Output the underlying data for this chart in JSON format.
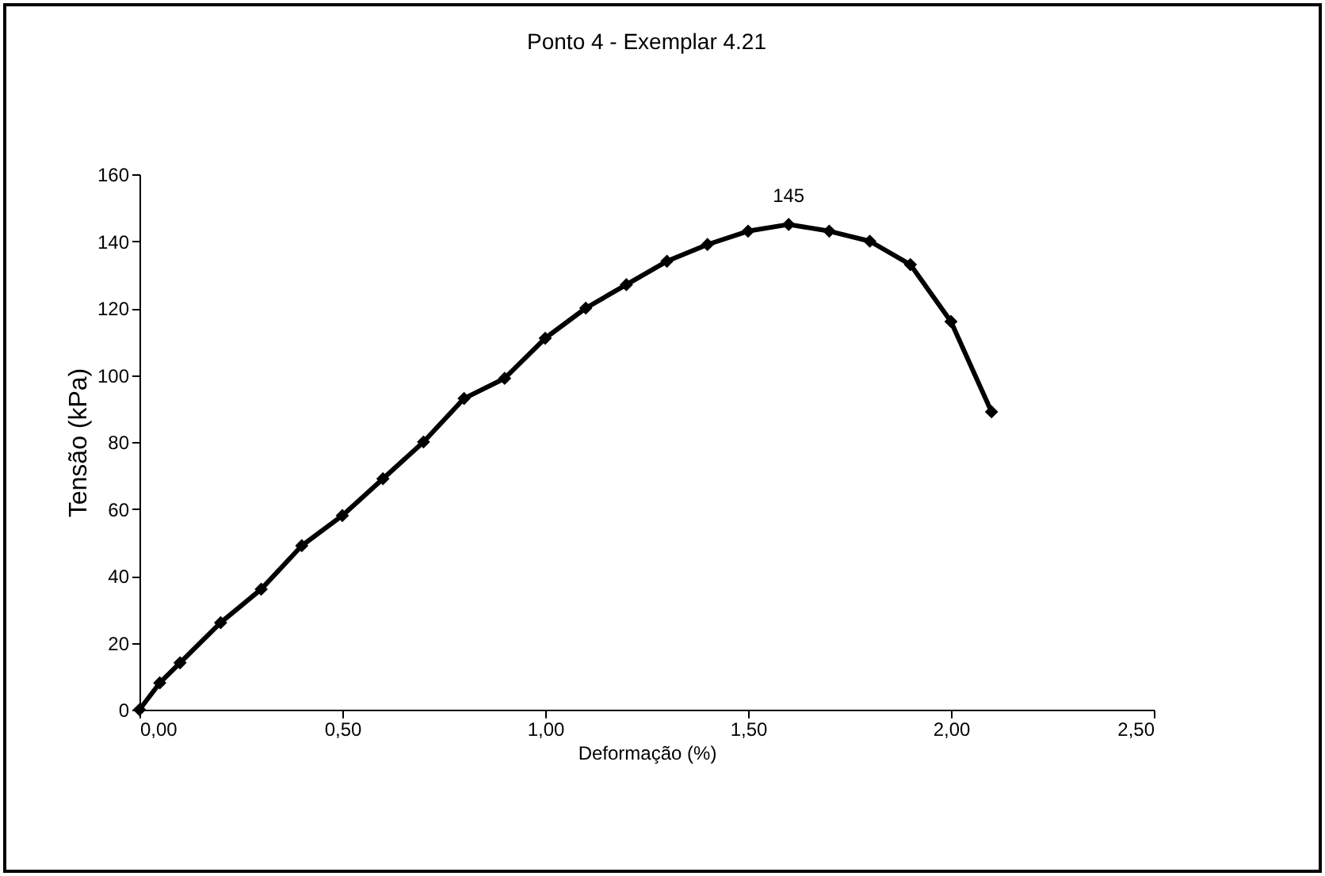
{
  "chart_data": {
    "type": "line",
    "title": "Ponto 4 - Exemplar 4.21",
    "xlabel": "Deformação (%)",
    "ylabel": "Tensão (kPa)",
    "x": [
      0,
      0.05,
      0.1,
      0.2,
      0.3,
      0.4,
      0.5,
      0.6,
      0.7,
      0.8,
      0.9,
      1.0,
      1.1,
      1.2,
      1.3,
      1.4,
      1.5,
      1.6,
      1.7,
      1.8,
      1.9,
      2.0,
      2.1
    ],
    "series": [
      {
        "color": "#000000",
        "values": [
          0,
          8,
          14,
          26,
          36,
          49,
          58,
          69,
          80,
          93,
          99,
          111,
          120,
          127,
          134,
          139,
          143,
          145,
          143,
          140,
          133,
          116,
          89
        ]
      }
    ],
    "xlim": [
      0,
      2.5
    ],
    "xticks": [
      {
        "value": 0,
        "label": "0,00"
      },
      {
        "value": 0.5,
        "label": "0,50"
      },
      {
        "value": 1,
        "label": "1,00"
      },
      {
        "value": 1.5,
        "label": "1,50"
      },
      {
        "value": 2,
        "label": "2,00"
      },
      {
        "value": 2.5,
        "label": "2,50"
      }
    ],
    "ylim": [
      0,
      160
    ],
    "yticks": [
      0,
      20,
      40,
      60,
      80,
      100,
      120,
      140,
      160
    ],
    "annotations": [
      {
        "text": "145",
        "x": 1.6,
        "y": 145
      }
    ],
    "marker": "diamond",
    "line_style": "solid",
    "grid": false,
    "legend": false
  }
}
